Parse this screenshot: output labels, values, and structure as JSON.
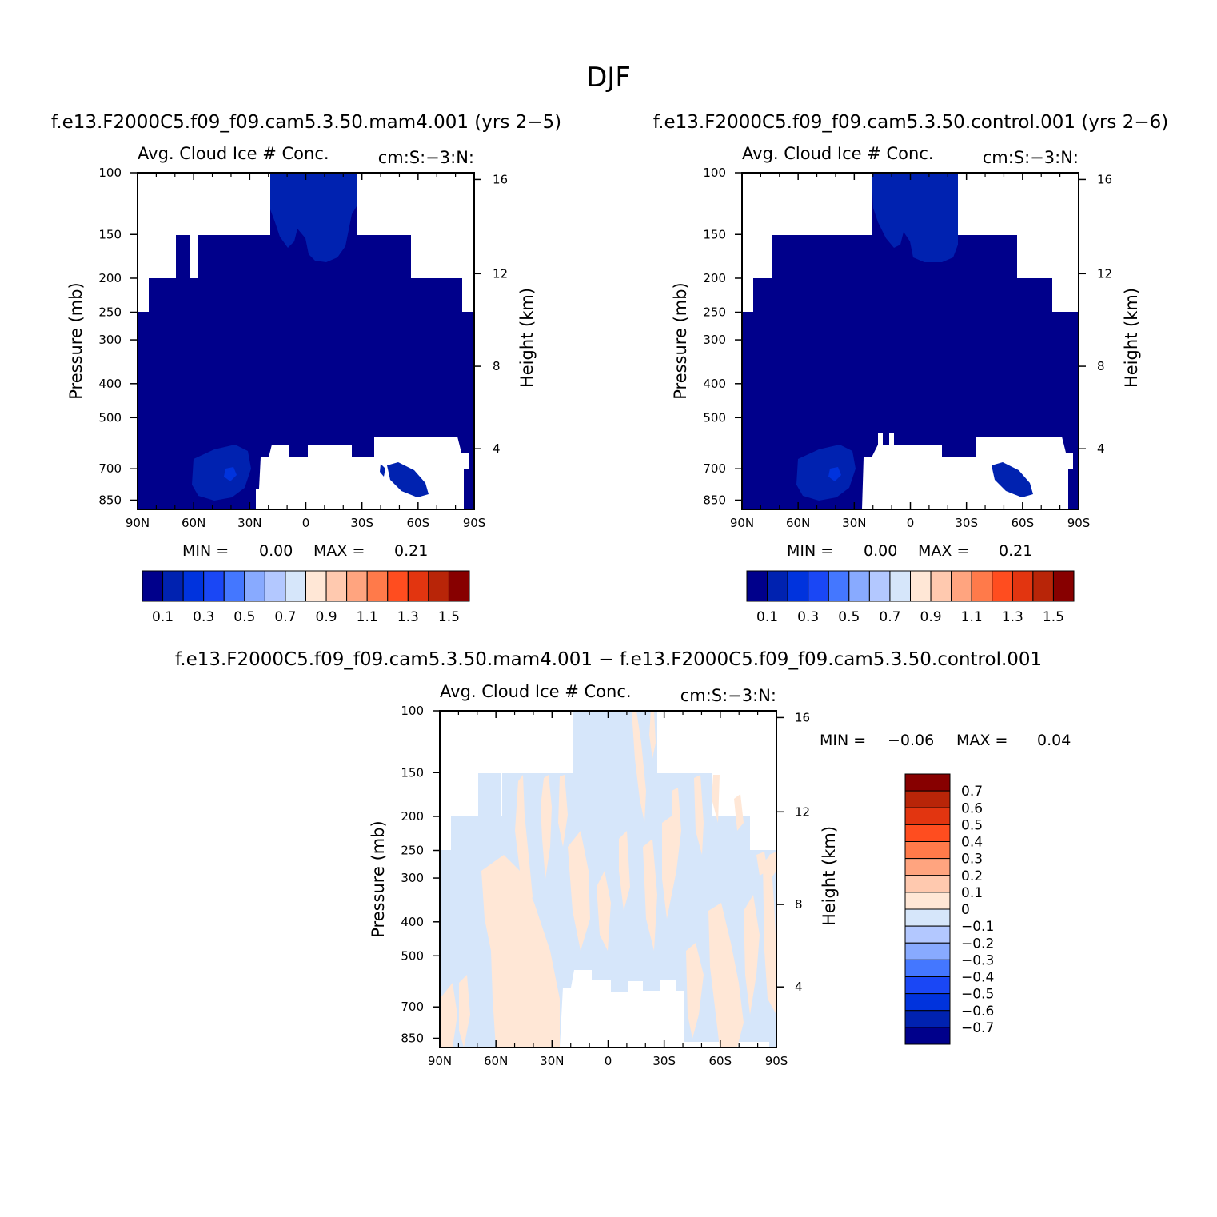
{
  "figure": {
    "title": "DJF",
    "diff_run_title": "f.e13.F2000C5.f09_f09.cam5.3.50.mam4.001 − f.e13.F2000C5.f09_f09.cam5.3.50.control.001"
  },
  "colors": {
    "abs_palette": [
      "#00008b",
      "#0022b0",
      "#0033dd",
      "#1a47f5",
      "#4477ff",
      "#88aaff",
      "#b3c8ff",
      "#d6e6fa",
      "#ffe7d6",
      "#ffc9af",
      "#ffa47f",
      "#ff7a4a",
      "#ff4d1f",
      "#e23510",
      "#b82508",
      "#870000"
    ],
    "diff_palette": [
      "#00008b",
      "#0022b0",
      "#0033dd",
      "#1a47f5",
      "#4477ff",
      "#88aaff",
      "#b3c8ff",
      "#d6e6fa",
      "#ffe7d6",
      "#ffc9af",
      "#ffa47f",
      "#ff7a4a",
      "#ff4d1f",
      "#e23510",
      "#b82508",
      "#870000"
    ],
    "diff_negative_fill": "#d6e6fa",
    "diff_positive_fill": "#ffe7d6",
    "abs_base_fill": "#00008b",
    "abs_mid_fill": "#0022b0"
  },
  "chart_data": [
    {
      "id": "panel-mam4",
      "type": "heatmap",
      "title": "f.e13.F2000C5.f09_f09.cam5.3.50.mam4.001 (yrs 2−5)",
      "subtitle": "Avg. Cloud Ice # Conc.",
      "units": "cm:S:−3:N:",
      "xlabel": "",
      "ylabel": "Pressure (mb)",
      "y2label": "Height (km)",
      "x_ticks": [
        "90N",
        "60N",
        "30N",
        "0",
        "30S",
        "60S",
        "90S"
      ],
      "y_ticks": [
        "100",
        "150",
        "200",
        "250",
        "300",
        "400",
        "500",
        "700",
        "850"
      ],
      "y2_ticks": [
        "16",
        "12",
        "8",
        "4"
      ],
      "min_label": "MIN =",
      "min_value": "0.00",
      "max_label": "MAX =",
      "max_value": "0.21",
      "colorbar_labels": [
        "0.1",
        "0.3",
        "0.5",
        "0.7",
        "0.9",
        "1.1",
        "1.3",
        "1.5"
      ],
      "colorbar_orientation": "horizontal",
      "field_min": 0.0,
      "field_max": 0.21,
      "dominant_level": 0.1,
      "max_region_level": 0.2
    },
    {
      "id": "panel-control",
      "type": "heatmap",
      "title": "f.e13.F2000C5.f09_f09.cam5.3.50.control.001 (yrs 2−6)",
      "subtitle": "Avg. Cloud Ice # Conc.",
      "units": "cm:S:−3:N:",
      "xlabel": "",
      "ylabel": "Pressure (mb)",
      "y2label": "Height (km)",
      "x_ticks": [
        "90N",
        "60N",
        "30N",
        "0",
        "30S",
        "60S",
        "90S"
      ],
      "y_ticks": [
        "100",
        "150",
        "200",
        "250",
        "300",
        "400",
        "500",
        "700",
        "850"
      ],
      "y2_ticks": [
        "16",
        "12",
        "8",
        "4"
      ],
      "min_label": "MIN =",
      "min_value": "0.00",
      "max_label": "MAX =",
      "max_value": "0.21",
      "colorbar_labels": [
        "0.1",
        "0.3",
        "0.5",
        "0.7",
        "0.9",
        "1.1",
        "1.3",
        "1.5"
      ],
      "colorbar_orientation": "horizontal",
      "field_min": 0.0,
      "field_max": 0.21,
      "dominant_level": 0.1,
      "max_region_level": 0.2
    },
    {
      "id": "panel-diff",
      "type": "heatmap",
      "title": "",
      "subtitle": "Avg. Cloud Ice # Conc.",
      "units": "cm:S:−3:N:",
      "xlabel": "",
      "ylabel": "Pressure (mb)",
      "y2label": "Height (km)",
      "x_ticks": [
        "90N",
        "60N",
        "30N",
        "0",
        "30S",
        "60S",
        "90S"
      ],
      "y_ticks": [
        "100",
        "150",
        "200",
        "250",
        "300",
        "400",
        "500",
        "700",
        "850"
      ],
      "y2_ticks": [
        "16",
        "12",
        "8",
        "4"
      ],
      "min_label": "MIN =",
      "min_value": "−0.06",
      "max_label": "MAX =",
      "max_value": "0.04",
      "colorbar_labels": [
        "0.7",
        "0.6",
        "0.5",
        "0.4",
        "0.3",
        "0.2",
        "0.1",
        "0",
        "−0.1",
        "−0.2",
        "−0.3",
        "−0.4",
        "−0.5",
        "−0.6",
        "−0.7"
      ],
      "colorbar_orientation": "vertical",
      "field_min": -0.06,
      "field_max": 0.04,
      "sign_pattern": "mostly small negative (light blue) with scattered small positive (light peach) streaks"
    }
  ]
}
